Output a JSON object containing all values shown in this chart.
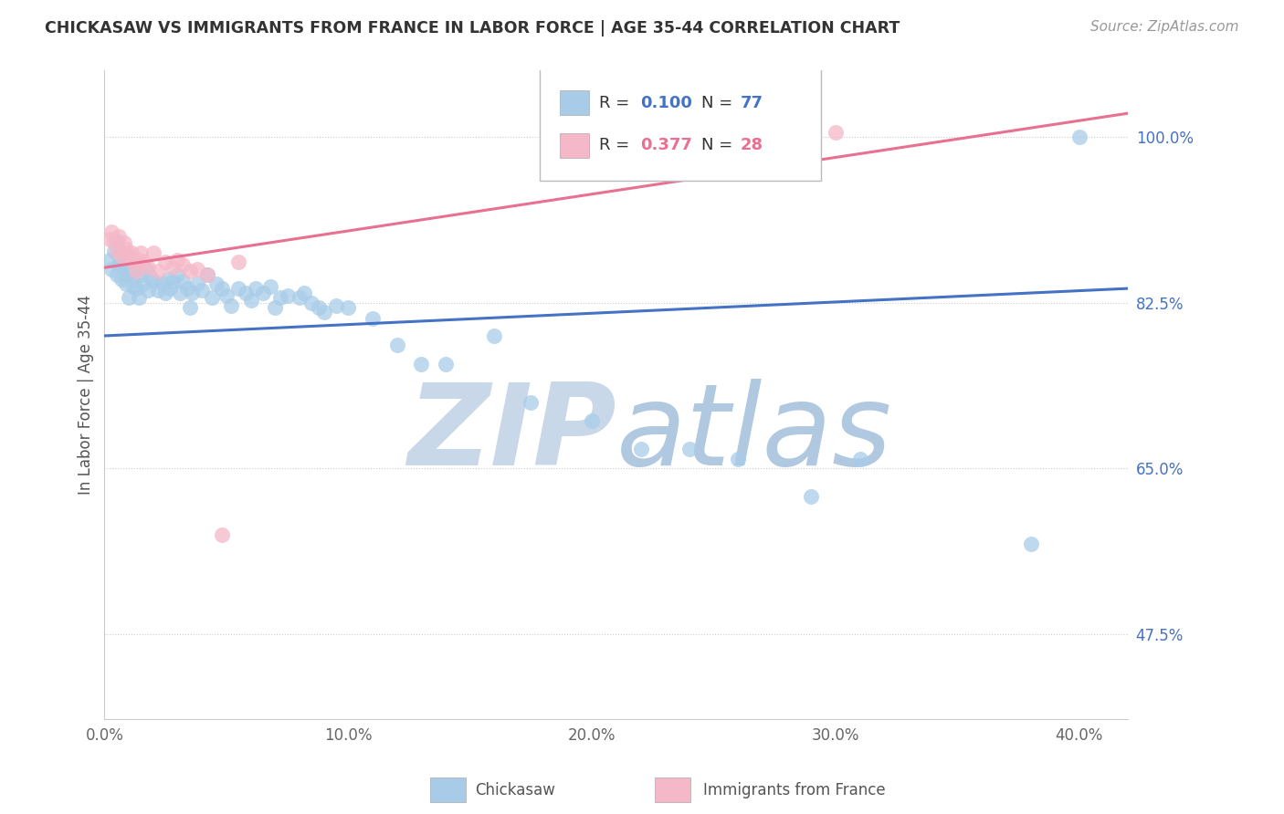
{
  "title": "CHICKASAW VS IMMIGRANTS FROM FRANCE IN LABOR FORCE | AGE 35-44 CORRELATION CHART",
  "source": "Source: ZipAtlas.com",
  "ylabel": "In Labor Force | Age 35-44",
  "xlim": [
    0.0,
    0.42
  ],
  "ylim": [
    0.385,
    1.07
  ],
  "xtick_labels": [
    "0.0%",
    "",
    "",
    "",
    "10.0%",
    "",
    "",
    "",
    "",
    "20.0%",
    "",
    "",
    "",
    "",
    "30.0%",
    "",
    "",
    "",
    "",
    "40.0%"
  ],
  "xtick_major_labels": [
    "0.0%",
    "10.0%",
    "20.0%",
    "30.0%",
    "40.0%"
  ],
  "xtick_major_vals": [
    0.0,
    0.1,
    0.2,
    0.3,
    0.4
  ],
  "ytick_labels": [
    "47.5%",
    "65.0%",
    "82.5%",
    "100.0%"
  ],
  "ytick_vals": [
    0.475,
    0.65,
    0.825,
    1.0
  ],
  "blue_color": "#A8CCE8",
  "pink_color": "#F5B8C8",
  "blue_line_color": "#4472C4",
  "pink_line_color": "#E87090",
  "watermark_color": "#DCE8F4",
  "blue_trend_x": [
    0.0,
    0.42
  ],
  "blue_trend_y": [
    0.79,
    0.84
  ],
  "pink_trend_x": [
    0.0,
    0.42
  ],
  "pink_trend_y": [
    0.862,
    1.025
  ],
  "blue_scatter_x": [
    0.002,
    0.003,
    0.004,
    0.005,
    0.005,
    0.006,
    0.006,
    0.007,
    0.007,
    0.008,
    0.008,
    0.009,
    0.009,
    0.01,
    0.01,
    0.011,
    0.011,
    0.012,
    0.012,
    0.013,
    0.014,
    0.015,
    0.016,
    0.017,
    0.018,
    0.019,
    0.02,
    0.022,
    0.024,
    0.025,
    0.026,
    0.027,
    0.028,
    0.03,
    0.031,
    0.032,
    0.034,
    0.035,
    0.036,
    0.038,
    0.04,
    0.042,
    0.044,
    0.046,
    0.048,
    0.05,
    0.052,
    0.055,
    0.058,
    0.06,
    0.062,
    0.065,
    0.068,
    0.07,
    0.072,
    0.075,
    0.08,
    0.082,
    0.085,
    0.088,
    0.09,
    0.095,
    0.1,
    0.11,
    0.12,
    0.13,
    0.14,
    0.16,
    0.175,
    0.2,
    0.22,
    0.24,
    0.26,
    0.29,
    0.31,
    0.38,
    0.4
  ],
  "blue_scatter_y": [
    0.87,
    0.86,
    0.88,
    0.855,
    0.89,
    0.875,
    0.865,
    0.87,
    0.85,
    0.862,
    0.878,
    0.855,
    0.845,
    0.86,
    0.83,
    0.872,
    0.858,
    0.842,
    0.855,
    0.84,
    0.83,
    0.855,
    0.845,
    0.86,
    0.838,
    0.852,
    0.848,
    0.838,
    0.845,
    0.835,
    0.85,
    0.84,
    0.848,
    0.855,
    0.835,
    0.848,
    0.84,
    0.82,
    0.835,
    0.845,
    0.838,
    0.855,
    0.83,
    0.845,
    0.84,
    0.832,
    0.822,
    0.84,
    0.835,
    0.828,
    0.84,
    0.835,
    0.842,
    0.82,
    0.83,
    0.832,
    0.83,
    0.835,
    0.825,
    0.82,
    0.815,
    0.822,
    0.82,
    0.808,
    0.78,
    0.76,
    0.76,
    0.79,
    0.72,
    0.7,
    0.67,
    0.67,
    0.66,
    0.62,
    0.66,
    0.57,
    1.0
  ],
  "pink_scatter_x": [
    0.002,
    0.003,
    0.004,
    0.005,
    0.006,
    0.007,
    0.008,
    0.009,
    0.01,
    0.011,
    0.012,
    0.013,
    0.014,
    0.015,
    0.016,
    0.018,
    0.02,
    0.022,
    0.025,
    0.028,
    0.03,
    0.032,
    0.035,
    0.038,
    0.042,
    0.048,
    0.055,
    0.3
  ],
  "pink_scatter_y": [
    0.892,
    0.9,
    0.89,
    0.88,
    0.895,
    0.875,
    0.888,
    0.882,
    0.872,
    0.878,
    0.868,
    0.858,
    0.87,
    0.878,
    0.868,
    0.862,
    0.878,
    0.858,
    0.868,
    0.862,
    0.87,
    0.865,
    0.858,
    0.86,
    0.855,
    0.58,
    0.868,
    1.005
  ],
  "background_color": "#FFFFFF",
  "grid_color": "#CCCCCC"
}
